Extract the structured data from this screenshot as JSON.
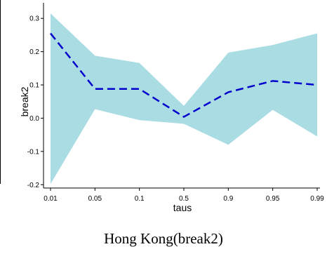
{
  "chart_data": {
    "type": "area",
    "title": "",
    "xlabel": "taus",
    "ylabel": "break2",
    "categories": [
      "0.01",
      "0.05",
      "0.1",
      "0.5",
      "0.9",
      "0.95",
      "0.99"
    ],
    "ylim": [
      -0.21,
      0.33
    ],
    "yticks": [
      -0.2,
      -0.1,
      0.0,
      0.1,
      0.2,
      0.3
    ],
    "ytick_labels": [
      "-0.2",
      "-0.1",
      "0.0",
      "0.1",
      "0.2",
      "0.3"
    ],
    "grid": false,
    "series": [
      {
        "type": "line",
        "style": "dashed",
        "color": "#0000cc",
        "values": [
          0.255,
          0.088,
          0.088,
          0.004,
          0.078,
          0.112,
          0.1
        ]
      },
      {
        "type": "band",
        "color": "#aadde3",
        "upper": [
          0.315,
          0.188,
          0.166,
          0.037,
          0.197,
          0.22,
          0.255
        ],
        "lower": [
          -0.198,
          0.027,
          -0.006,
          -0.017,
          -0.08,
          0.025,
          -0.055
        ]
      }
    ],
    "caption": "Hong Kong(break2)"
  }
}
